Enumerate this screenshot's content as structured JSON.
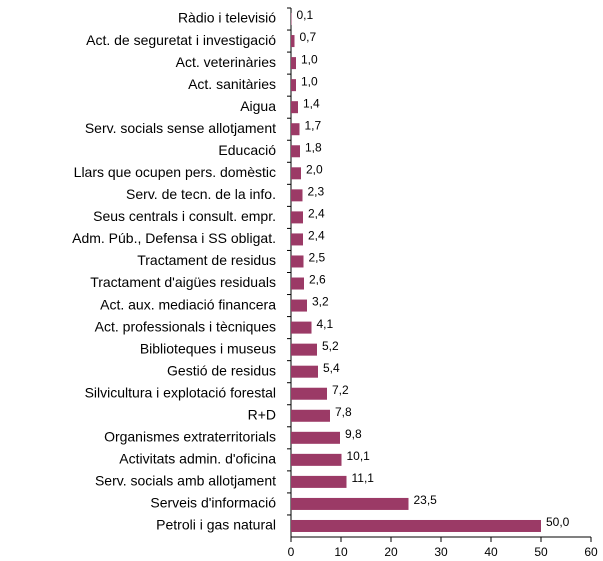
{
  "chart_data": {
    "type": "bar",
    "orientation": "horizontal",
    "categories": [
      "Ràdio i televisió",
      "Act. de seguretat i investigació",
      "Act. veterinàries",
      "Act. sanitàries",
      "Aigua",
      "Serv. socials sense allotjament",
      "Educació",
      "Llars que ocupen pers. domèstic",
      "Serv. de tecn. de la info.",
      "Seus centrals i consult. empr.",
      "Adm. Púb., Defensa i SS obligat.",
      "Tractament de residus",
      "Tractament d'aigües residuals",
      "Act. aux. mediació financera",
      "Act. professionals i tècniques",
      "Biblioteques i museus",
      "Gestió de residus",
      "Silvicultura i explotació forestal",
      "R+D",
      "Organismes extraterritorials",
      "Activitats admin. d'oficina",
      "Serv. socials amb allotjament",
      "Serveis d'informació",
      "Petroli i gas natural"
    ],
    "values": [
      0.1,
      0.7,
      1.0,
      1.0,
      1.4,
      1.7,
      1.8,
      2.0,
      2.3,
      2.4,
      2.4,
      2.5,
      2.6,
      3.2,
      4.1,
      5.2,
      5.4,
      7.2,
      7.8,
      9.8,
      10.1,
      11.1,
      23.5,
      50.0
    ],
    "value_labels": [
      "0,1",
      "0,7",
      "1,0",
      "1,0",
      "1,4",
      "1,7",
      "1,8",
      "2,0",
      "2,3",
      "2,4",
      "2,4",
      "2,5",
      "2,6",
      "3,2",
      "4,1",
      "5,2",
      "5,4",
      "7,2",
      "7,8",
      "9,8",
      "10,1",
      "11,1",
      "23,5",
      "50,0"
    ],
    "color": "#9b3a66",
    "xlim": [
      0,
      60
    ],
    "xticks": [
      0,
      10,
      20,
      30,
      40,
      50,
      60
    ]
  }
}
